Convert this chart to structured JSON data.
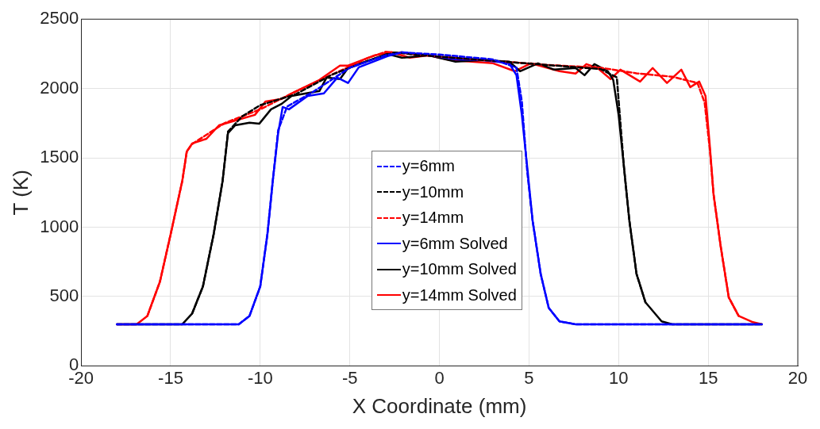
{
  "chart_data": {
    "type": "line",
    "xlabel": "X Coordinate (mm)",
    "ylabel": "T (K)",
    "xlim": [
      -20,
      20
    ],
    "xticks": [
      -20,
      -15,
      -10,
      -5,
      0,
      5,
      10,
      15,
      20
    ],
    "ylim": [
      0,
      2500
    ],
    "yticks": [
      0,
      500,
      1000,
      1500,
      2000,
      2500
    ],
    "grid": true,
    "legend": "center",
    "marker": "none",
    "series": [
      {
        "name": "y=6mm",
        "color": "#0000ff",
        "line_style": "dashed",
        "x": [
          -18,
          -11.2,
          -10.6,
          -10,
          -9.6,
          -9.3,
          -9,
          -8.5,
          -7,
          -5,
          -3,
          -2,
          0,
          3,
          4.3,
          4.6,
          4.9,
          5.2,
          5.65,
          6.1,
          6.7,
          7.6,
          18
        ],
        "values": [
          300,
          300,
          360,
          573,
          950,
          1335,
          1700,
          1870,
          1980,
          2150,
          2240,
          2260,
          2245,
          2210,
          2150,
          1907,
          1400,
          1048,
          664,
          418,
          321,
          300,
          300
        ]
      },
      {
        "name": "y=10mm",
        "color": "#000000",
        "line_style": "dashed",
        "x": [
          -13.8,
          -13.2,
          -12.6,
          -12.1,
          -11.8,
          -11,
          -10,
          -8,
          -6,
          -4,
          -2.5,
          0,
          3,
          6,
          9,
          9.9,
          10.3,
          10.6,
          11,
          11.5
        ],
        "values": [
          378,
          573,
          950,
          1335,
          1690,
          1800,
          1880,
          1960,
          2100,
          2200,
          2260,
          2230,
          2200,
          2170,
          2140,
          2080,
          1432,
          1048,
          664,
          458
        ]
      },
      {
        "name": "y=14mm",
        "color": "#ff0000",
        "line_style": "dashed",
        "x": [
          -16.3,
          -15.6,
          -15,
          -14.35,
          -14.1,
          -13.8,
          -12,
          -10,
          -8,
          -6,
          -4,
          -3,
          0,
          3,
          6,
          9,
          11,
          13,
          14.4,
          14.8,
          15.1,
          15.3,
          15.7,
          16.15,
          16.7
        ],
        "values": [
          360,
          607,
          950,
          1335,
          1546,
          1600,
          1750,
          1850,
          1980,
          2100,
          2220,
          2265,
          2230,
          2200,
          2170,
          2150,
          2110,
          2085,
          2040,
          1900,
          1550,
          1237,
          860,
          493,
          360
        ]
      },
      {
        "name": "y=6mm Solved",
        "color": "#0000ff",
        "line_style": "solid",
        "x": [
          -18,
          -11.2,
          -10.6,
          -10,
          -9.6,
          -9.3,
          -9,
          -8.75,
          -8.4,
          -7.35,
          -6.45,
          -5.7,
          -5.1,
          -4.5,
          -2.9,
          -2.1,
          -0.6,
          0.9,
          2.4,
          3.9,
          4.3,
          4.6,
          4.9,
          5.2,
          5.65,
          6.1,
          6.7,
          7.6,
          18
        ],
        "values": [
          300,
          300,
          360,
          573,
          950,
          1335,
          1678,
          1867,
          1850,
          1947,
          1965,
          2079,
          2040,
          2153,
          2233,
          2262,
          2240,
          2211,
          2205,
          2182,
          2096,
          1810,
          1432,
          1048,
          664,
          418,
          321,
          300,
          300
        ]
      },
      {
        "name": "y=10mm Solved",
        "color": "#000000",
        "line_style": "solid",
        "x": [
          -18,
          -14.35,
          -13.8,
          -13.2,
          -12.6,
          -12.1,
          -11.8,
          -11.4,
          -10.6,
          -10.05,
          -9.4,
          -8.8,
          -8.25,
          -6.7,
          -6.3,
          -5.55,
          -5.1,
          -2.9,
          -2.1,
          -0.6,
          0.9,
          2.4,
          3.9,
          4.5,
          5.5,
          6.4,
          7.6,
          8.1,
          8.65,
          9.4,
          9.7,
          10,
          10.3,
          10.6,
          11,
          11.5,
          12.4,
          13,
          18
        ],
        "values": [
          300,
          300,
          378,
          573,
          950,
          1335,
          1678,
          1735,
          1753,
          1747,
          1850,
          1890,
          1947,
          1982,
          2079,
          2068,
          2148,
          2250,
          2222,
          2240,
          2194,
          2205,
          2194,
          2125,
          2182,
          2136,
          2148,
          2096,
          2176,
          2125,
          2062,
          1810,
          1432,
          1048,
          664,
          458,
          321,
          300,
          300
        ]
      },
      {
        "name": "y=14mm Solved",
        "color": "#ff0000",
        "line_style": "solid",
        "x": [
          -18,
          -16.9,
          -16.3,
          -15.6,
          -15,
          -14.35,
          -14.1,
          -13.8,
          -13,
          -12.3,
          -11.2,
          -10.3,
          -9.7,
          -8.8,
          -8.25,
          -6.7,
          -5.55,
          -5.1,
          -3.6,
          -2.7,
          -1.65,
          -0.6,
          0.6,
          1.8,
          3,
          4.2,
          5.1,
          6.7,
          7.6,
          8.2,
          8.8,
          9.55,
          10.1,
          11.2,
          11.9,
          12.7,
          13.5,
          14,
          14.5,
          14.85,
          15.07,
          15.3,
          15.7,
          16.15,
          16.7,
          17.5,
          18
        ],
        "values": [
          300,
          300,
          360,
          607,
          950,
          1335,
          1546,
          1604,
          1638,
          1735,
          1776,
          1810,
          1907,
          1925,
          1965,
          2062,
          2165,
          2165,
          2240,
          2262,
          2222,
          2240,
          2205,
          2194,
          2182,
          2125,
          2182,
          2125,
          2108,
          2176,
          2150,
          2068,
          2136,
          2050,
          2148,
          2040,
          2136,
          2010,
          2050,
          1947,
          1620,
          1237,
          860,
          493,
          360,
          315,
          300
        ]
      }
    ]
  }
}
